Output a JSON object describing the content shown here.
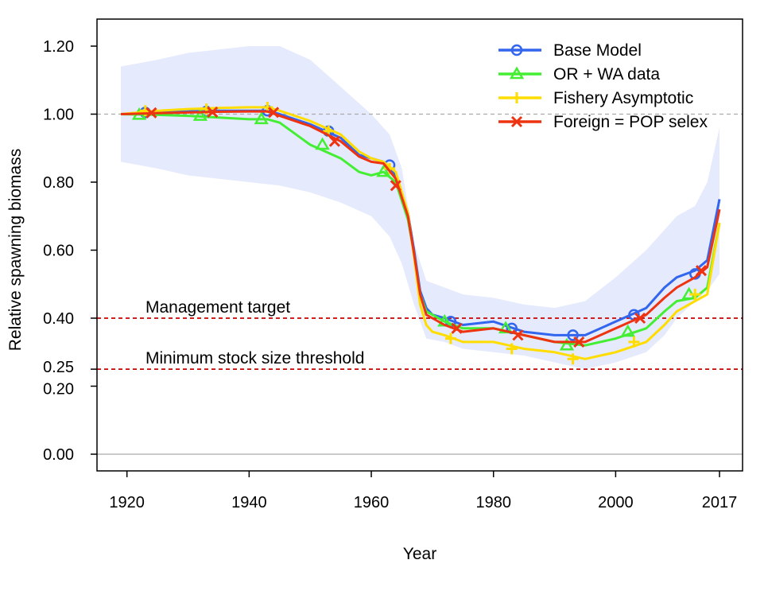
{
  "chart_data": {
    "type": "line",
    "title": "",
    "xlabel": "Year",
    "ylabel": "Relative spawning biomass",
    "xlim": [
      1919,
      2017
    ],
    "ylim": [
      0,
      1.2
    ],
    "x_ticks": [
      "1920",
      "1940",
      "1960",
      "1980",
      "2000",
      "2017"
    ],
    "x_tick_values": [
      1920,
      1940,
      1960,
      1980,
      2000,
      2017
    ],
    "y_ticks": [
      "0.00",
      "0.20",
      "0.25",
      "0.40",
      "0.60",
      "0.80",
      "1.00",
      "1.20"
    ],
    "y_tick_values": [
      0,
      0.2,
      0.25,
      0.4,
      0.6,
      0.8,
      1.0,
      1.2
    ],
    "grid": false,
    "legend_position": "top-right",
    "reference_lines": [
      {
        "label": "Management target",
        "y": 0.4,
        "color": "#cc0000"
      },
      {
        "label": "Minimum stock size threshold",
        "y": 0.25,
        "color": "#cc0000"
      },
      {
        "label": "",
        "y": 1.0,
        "color": "#aaaaaa"
      },
      {
        "label": "",
        "y": 0.0,
        "color": "#aaaaaa"
      }
    ],
    "uncertainty_band": {
      "series": "Base Model",
      "color": "#e5eafc",
      "x": [
        1919,
        1925,
        1930,
        1935,
        1940,
        1945,
        1950,
        1955,
        1960,
        1963,
        1965,
        1967,
        1969,
        1972,
        1975,
        1980,
        1985,
        1990,
        1995,
        2000,
        2005,
        2008,
        2010,
        2013,
        2015,
        2017
      ],
      "lower": [
        0.86,
        0.84,
        0.82,
        0.81,
        0.8,
        0.79,
        0.77,
        0.74,
        0.7,
        0.64,
        0.56,
        0.44,
        0.34,
        0.33,
        0.31,
        0.3,
        0.29,
        0.27,
        0.25,
        0.27,
        0.3,
        0.35,
        0.4,
        0.45,
        0.48,
        0.53
      ],
      "upper": [
        1.14,
        1.16,
        1.18,
        1.19,
        1.2,
        1.2,
        1.16,
        1.08,
        1.0,
        0.94,
        0.84,
        0.62,
        0.51,
        0.49,
        0.47,
        0.46,
        0.44,
        0.43,
        0.45,
        0.52,
        0.6,
        0.66,
        0.7,
        0.73,
        0.8,
        0.96
      ]
    },
    "x": [
      1919,
      1925,
      1930,
      1935,
      1940,
      1943,
      1945,
      1950,
      1955,
      1958,
      1960,
      1962,
      1964,
      1966,
      1967,
      1968,
      1969,
      1970,
      1972,
      1975,
      1980,
      1985,
      1990,
      1995,
      2000,
      2005,
      2008,
      2010,
      2013,
      2015,
      2017
    ],
    "series": [
      {
        "name": "Base Model",
        "color": "#3366ee",
        "marker": "circle",
        "values": [
          1.0,
          1.005,
          1.008,
          1.01,
          1.01,
          1.01,
          1.0,
          0.97,
          0.93,
          0.88,
          0.87,
          0.86,
          0.82,
          0.71,
          0.6,
          0.48,
          0.43,
          0.41,
          0.4,
          0.38,
          0.39,
          0.36,
          0.35,
          0.35,
          0.39,
          0.43,
          0.49,
          0.52,
          0.54,
          0.57,
          0.75
        ],
        "marker_x": [
          1923,
          1933,
          1943,
          1953,
          1963,
          1973,
          1983,
          1993,
          2003,
          2013
        ],
        "marker_y": [
          1.005,
          1.008,
          1.01,
          0.95,
          0.85,
          0.39,
          0.37,
          0.35,
          0.41,
          0.53
        ]
      },
      {
        "name": "OR + WA data",
        "color": "#44ee33",
        "marker": "triangle",
        "values": [
          1.0,
          0.998,
          0.995,
          0.99,
          0.985,
          0.985,
          0.975,
          0.91,
          0.87,
          0.83,
          0.82,
          0.83,
          0.8,
          0.69,
          0.59,
          0.47,
          0.42,
          0.41,
          0.39,
          0.37,
          0.37,
          0.35,
          0.33,
          0.32,
          0.34,
          0.37,
          0.42,
          0.45,
          0.46,
          0.49,
          0.68
        ],
        "marker_x": [
          1922,
          1932,
          1942,
          1952,
          1962,
          1972,
          1982,
          1992,
          2002,
          2012
        ],
        "marker_y": [
          0.998,
          0.995,
          0.985,
          0.91,
          0.83,
          0.39,
          0.37,
          0.32,
          0.36,
          0.47
        ]
      },
      {
        "name": "Fishery Asymptotic",
        "color": "#ffdd00",
        "marker": "plus",
        "values": [
          1.0,
          1.01,
          1.015,
          1.018,
          1.02,
          1.02,
          1.01,
          0.98,
          0.94,
          0.89,
          0.87,
          0.86,
          0.83,
          0.71,
          0.58,
          0.44,
          0.38,
          0.36,
          0.35,
          0.33,
          0.33,
          0.31,
          0.3,
          0.28,
          0.3,
          0.33,
          0.38,
          0.42,
          0.45,
          0.47,
          0.68
        ],
        "marker_x": [
          1923,
          1933,
          1943,
          1953,
          1963,
          1973,
          1983,
          1993,
          2003,
          2013
        ],
        "marker_y": [
          1.01,
          1.015,
          1.02,
          0.95,
          0.84,
          0.34,
          0.31,
          0.28,
          0.33,
          0.47
        ]
      },
      {
        "name": "Foreign = POP selex",
        "color": "#ee3311",
        "marker": "x",
        "values": [
          1.0,
          1.003,
          1.005,
          1.007,
          1.008,
          1.008,
          0.995,
          0.965,
          0.92,
          0.875,
          0.86,
          0.855,
          0.81,
          0.7,
          0.59,
          0.47,
          0.41,
          0.4,
          0.38,
          0.36,
          0.37,
          0.35,
          0.33,
          0.33,
          0.37,
          0.41,
          0.46,
          0.49,
          0.52,
          0.55,
          0.72
        ],
        "marker_x": [
          1924,
          1934,
          1944,
          1954,
          1964,
          1974,
          1984,
          1994,
          2004,
          2014
        ],
        "marker_y": [
          1.004,
          1.006,
          1.005,
          0.92,
          0.79,
          0.37,
          0.35,
          0.33,
          0.4,
          0.54
        ]
      }
    ]
  }
}
